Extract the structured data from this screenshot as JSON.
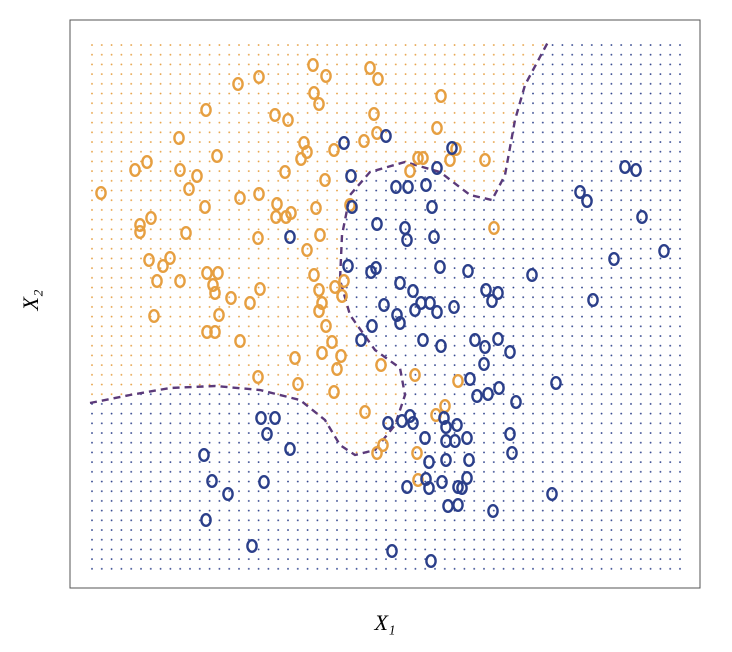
{
  "chart_data": {
    "type": "scatter",
    "xlabel": "X₁",
    "ylabel": "X₂",
    "xlim": [
      0,
      6.3
    ],
    "ylim": [
      0,
      5.68
    ],
    "region_dots": true,
    "series": [
      {
        "color": "#e69f41",
        "x": [
          0.31,
          0.65,
          0.77,
          0.7,
          0.7,
          0.81,
          1.09,
          1.1,
          1.19,
          1.27,
          1.36,
          1.47,
          1.35,
          1.16,
          1.68,
          1.89,
          2.05,
          2.18,
          2.43,
          2.56,
          2.44,
          2.49,
          2.34,
          2.37,
          2.31,
          2.15,
          1.89,
          1.7,
          2.07,
          2.06,
          2.16,
          2.21,
          2.46,
          2.55,
          2.64,
          3.0,
          3.08,
          3.04,
          3.07,
          2.94,
          3.71,
          3.67,
          3.48,
          3.53,
          3.86,
          3.8,
          4.15,
          3.4,
          4.24,
          2.8,
          2.5,
          2.37,
          1.88,
          0.79,
          1.0,
          0.93,
          0.87,
          1.1,
          1.37,
          1.48,
          1.43,
          1.45,
          1.61,
          1.8,
          1.9,
          1.49,
          0.84,
          1.37,
          1.45,
          1.7,
          2.44,
          2.49,
          2.52,
          2.49,
          2.65,
          2.72,
          2.74,
          2.56,
          2.62,
          2.52,
          2.71,
          2.25,
          2.67,
          3.11,
          1.88,
          2.28,
          2.64,
          3.45,
          3.88,
          3.75,
          2.95,
          3.13,
          3.07,
          3.47,
          3.48,
          3.66
        ],
        "values": [
          3.95,
          4.18,
          4.26,
          3.63,
          3.56,
          3.7,
          4.5,
          4.18,
          3.99,
          4.12,
          4.78,
          4.32,
          3.81,
          3.55,
          5.04,
          5.11,
          4.73,
          4.68,
          5.23,
          5.12,
          4.95,
          4.84,
          4.45,
          4.36,
          4.29,
          4.16,
          3.94,
          3.9,
          3.84,
          3.71,
          3.71,
          3.75,
          3.8,
          4.08,
          4.38,
          5.2,
          5.09,
          4.74,
          4.55,
          4.47,
          4.92,
          4.6,
          4.3,
          4.3,
          4.39,
          4.28,
          4.28,
          4.17,
          3.6,
          3.83,
          3.53,
          3.38,
          3.5,
          3.28,
          3.3,
          3.22,
          3.07,
          3.07,
          3.15,
          3.15,
          3.03,
          2.95,
          2.9,
          2.85,
          2.99,
          2.73,
          2.72,
          2.56,
          2.56,
          2.47,
          3.13,
          2.98,
          2.85,
          2.77,
          3.01,
          2.92,
          3.07,
          2.62,
          2.46,
          2.35,
          2.32,
          2.3,
          2.19,
          2.23,
          2.11,
          2.04,
          1.96,
          2.13,
          2.07,
          1.82,
          1.76,
          1.43,
          1.35,
          1.35,
          1.08,
          1.73
        ]
      },
      {
        "color": "#2b3f8a",
        "x": [
          2.74,
          3.16,
          2.81,
          3.26,
          3.38,
          3.56,
          3.67,
          3.82,
          2.82,
          3.07,
          3.35,
          3.37,
          3.62,
          3.64,
          2.2,
          2.78,
          3.01,
          3.06,
          3.3,
          3.7,
          3.98,
          4.62,
          5.1,
          5.17,
          5.55,
          5.66,
          5.72,
          5.94,
          5.44,
          5.23,
          3.14,
          3.43,
          3.51,
          3.6,
          3.45,
          3.67,
          3.84,
          4.16,
          4.28,
          4.22,
          3.27,
          3.02,
          3.3,
          2.91,
          3.53,
          3.71,
          4.05,
          4.28,
          4.15,
          4.4,
          4.14,
          4.0,
          4.07,
          4.18,
          4.29,
          4.46,
          4.86,
          1.91,
          2.05,
          1.97,
          2.2,
          1.34,
          1.42,
          1.58,
          1.94,
          1.36,
          1.82,
          3.18,
          3.32,
          3.4,
          3.43,
          3.74,
          3.76,
          3.87,
          3.55,
          3.76,
          3.85,
          3.97,
          4.4,
          4.42,
          3.59,
          3.76,
          3.99,
          3.56,
          3.59,
          3.37,
          3.72,
          3.97,
          3.88,
          3.92,
          3.78,
          3.88,
          4.23,
          4.82,
          3.22,
          3.61
        ],
        "values": [
          4.45,
          4.52,
          4.12,
          4.01,
          4.01,
          4.03,
          4.2,
          4.4,
          3.81,
          3.64,
          3.6,
          3.48,
          3.81,
          3.51,
          3.51,
          3.22,
          3.16,
          3.2,
          3.05,
          3.21,
          3.17,
          3.13,
          3.96,
          3.87,
          4.21,
          4.18,
          3.71,
          3.37,
          3.29,
          2.88,
          2.83,
          2.97,
          2.85,
          2.85,
          2.78,
          2.76,
          2.81,
          2.98,
          2.95,
          2.87,
          2.73,
          2.62,
          2.65,
          2.48,
          2.48,
          2.42,
          2.48,
          2.49,
          2.41,
          2.36,
          2.24,
          2.09,
          1.92,
          1.94,
          2.0,
          1.86,
          2.05,
          1.7,
          1.7,
          1.54,
          1.39,
          1.33,
          1.07,
          0.94,
          1.06,
          0.68,
          0.42,
          1.65,
          1.67,
          1.72,
          1.65,
          1.7,
          1.61,
          1.63,
          1.5,
          1.47,
          1.47,
          1.5,
          1.54,
          1.35,
          1.26,
          1.28,
          1.28,
          1.09,
          1.0,
          1.01,
          1.06,
          1.1,
          1.01,
          1.0,
          0.82,
          0.83,
          0.77,
          0.94,
          0.37,
          0.27
        ]
      }
    ],
    "boundary": {
      "color": "#5b3a7a",
      "dashed": true,
      "x": [
        0.2,
        0.6,
        1.0,
        1.45,
        1.9,
        2.3,
        2.55,
        2.7,
        2.85,
        3.05,
        3.25,
        3.35,
        3.3,
        3.05,
        2.8,
        2.7,
        2.72,
        2.8,
        3.0,
        3.35,
        3.7,
        4.0,
        4.22,
        4.35,
        4.45,
        4.55,
        4.78
      ],
      "values": [
        1.85,
        1.93,
        2.0,
        2.02,
        1.98,
        1.88,
        1.68,
        1.43,
        1.33,
        1.38,
        1.63,
        1.93,
        2.2,
        2.38,
        2.73,
        3.08,
        3.53,
        3.93,
        4.16,
        4.26,
        4.16,
        3.93,
        3.88,
        4.13,
        4.68,
        5.03,
        5.46
      ]
    }
  }
}
